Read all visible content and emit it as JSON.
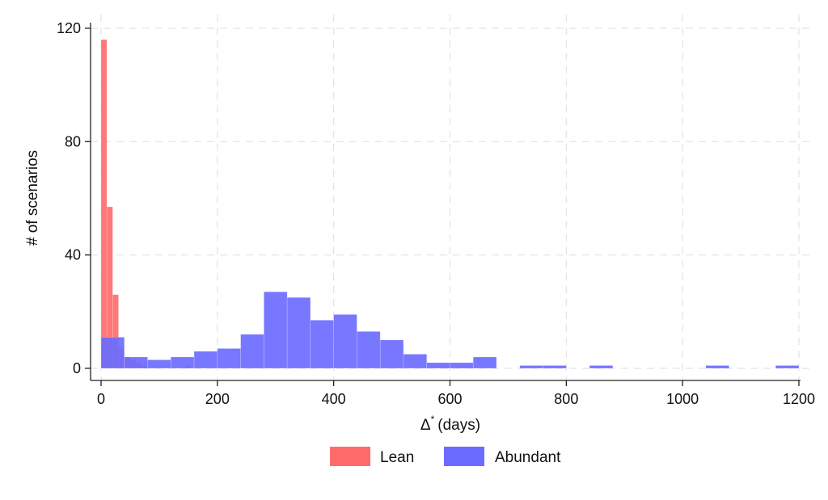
{
  "chart_data": {
    "type": "bar",
    "subtype": "overlaid-histogram",
    "xlabel_main": "Δ",
    "xlabel_sup": "*",
    "xlabel_unit": "(days)",
    "ylabel": "# of scenarios",
    "xlim": [
      -12,
      1205
    ],
    "ylim": [
      0,
      120
    ],
    "xticks": [
      0,
      200,
      400,
      600,
      800,
      1000,
      1200
    ],
    "yticks": [
      0,
      40,
      80,
      120
    ],
    "grid": true,
    "grid_style": "dashed",
    "legend_position": "bottom",
    "series": [
      {
        "name": "Lean",
        "color": "#ff6b6b",
        "bins": [
          {
            "x0": 0,
            "x1": 10,
            "value": 116
          },
          {
            "x0": 10,
            "x1": 20,
            "value": 57
          },
          {
            "x0": 20,
            "x1": 30,
            "value": 26
          },
          {
            "x0": 30,
            "x1": 40,
            "value": 7
          },
          {
            "x0": 40,
            "x1": 50,
            "value": 4
          },
          {
            "x0": 50,
            "x1": 60,
            "value": 3
          },
          {
            "x0": 60,
            "x1": 70,
            "value": 2
          },
          {
            "x0": 70,
            "x1": 80,
            "value": 1
          },
          {
            "x0": 145,
            "x1": 155,
            "value": 1
          }
        ]
      },
      {
        "name": "Abundant",
        "color": "#6b6bff",
        "bins": [
          {
            "x0": 0,
            "x1": 40,
            "value": 11
          },
          {
            "x0": 40,
            "x1": 80,
            "value": 4
          },
          {
            "x0": 80,
            "x1": 120,
            "value": 3
          },
          {
            "x0": 120,
            "x1": 160,
            "value": 4
          },
          {
            "x0": 160,
            "x1": 200,
            "value": 6
          },
          {
            "x0": 200,
            "x1": 240,
            "value": 7
          },
          {
            "x0": 240,
            "x1": 280,
            "value": 12
          },
          {
            "x0": 280,
            "x1": 320,
            "value": 27
          },
          {
            "x0": 320,
            "x1": 360,
            "value": 25
          },
          {
            "x0": 360,
            "x1": 400,
            "value": 17
          },
          {
            "x0": 400,
            "x1": 440,
            "value": 19
          },
          {
            "x0": 440,
            "x1": 480,
            "value": 13
          },
          {
            "x0": 480,
            "x1": 520,
            "value": 10
          },
          {
            "x0": 520,
            "x1": 560,
            "value": 5
          },
          {
            "x0": 560,
            "x1": 600,
            "value": 2
          },
          {
            "x0": 600,
            "x1": 640,
            "value": 2
          },
          {
            "x0": 640,
            "x1": 680,
            "value": 4
          },
          {
            "x0": 720,
            "x1": 760,
            "value": 1
          },
          {
            "x0": 760,
            "x1": 800,
            "value": 1
          },
          {
            "x0": 840,
            "x1": 880,
            "value": 1
          },
          {
            "x0": 1040,
            "x1": 1080,
            "value": 1
          },
          {
            "x0": 1160,
            "x1": 1200,
            "value": 1
          }
        ]
      }
    ]
  }
}
